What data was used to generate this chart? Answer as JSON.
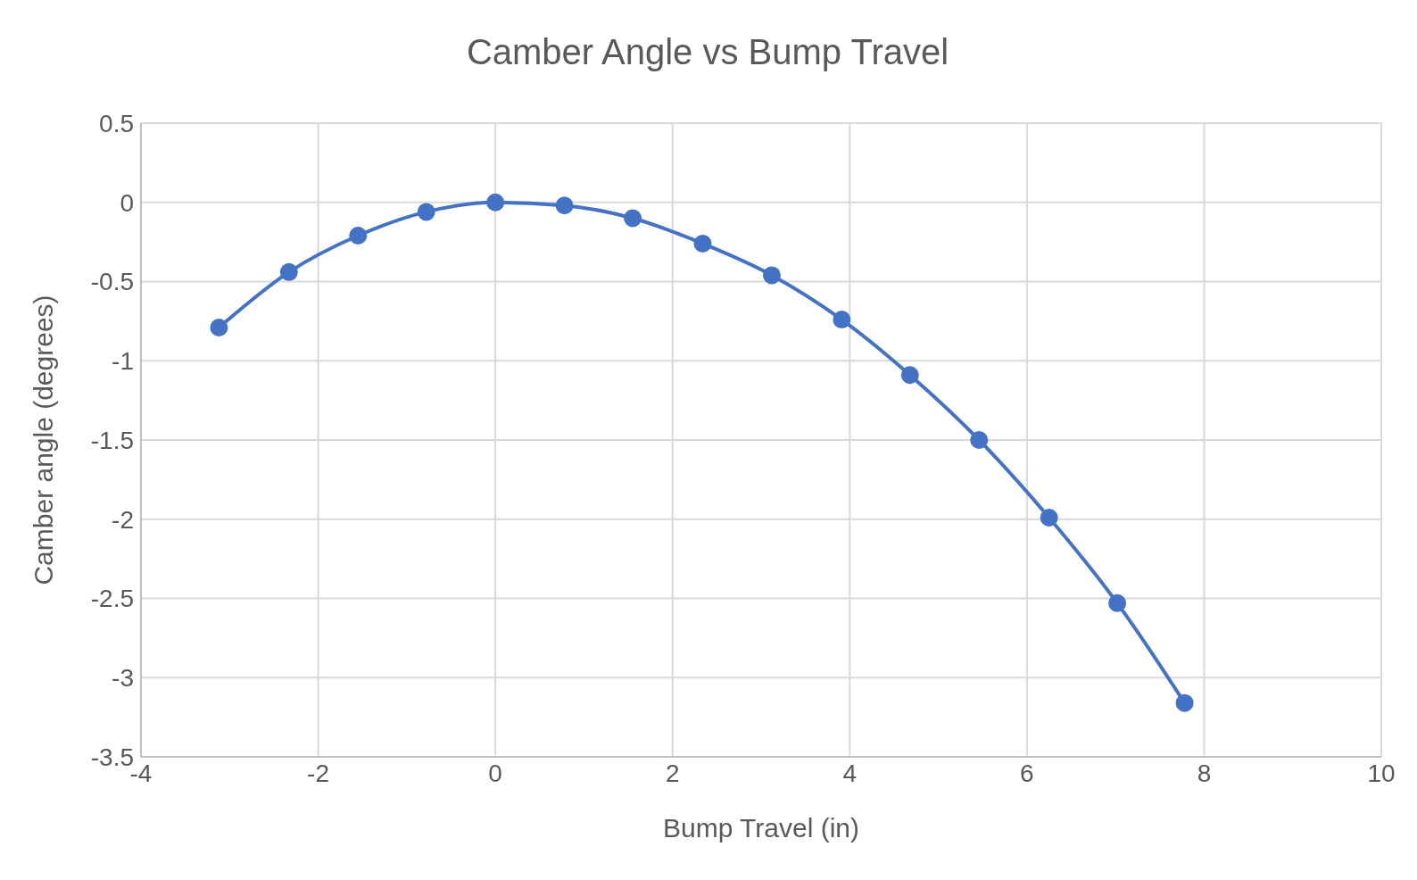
{
  "chart_data": {
    "type": "line",
    "title": "Camber Angle vs Bump Travel",
    "xlabel": "Bump Travel (in)",
    "ylabel": "Camber angle (degrees)",
    "x": [
      -3.12,
      -2.33,
      -1.55,
      -0.78,
      0,
      0.78,
      1.55,
      2.34,
      3.12,
      3.91,
      4.68,
      5.46,
      6.25,
      7.02,
      7.78
    ],
    "series": [
      {
        "color": "#4472c4",
        "values": [
          -0.79,
          -0.44,
          -0.21,
          -0.06,
          0,
          -0.02,
          -0.1,
          -0.26,
          -0.46,
          -0.74,
          -1.09,
          -1.5,
          -1.99,
          -2.53,
          -3.16
        ]
      }
    ],
    "xlim": [
      -4,
      10
    ],
    "xticks": [
      -4,
      -2,
      0,
      2,
      4,
      6,
      8,
      10
    ],
    "ylim": [
      -3.5,
      0.5
    ],
    "yticks": [
      -3.5,
      -3,
      -2.5,
      -2,
      -1.5,
      -1,
      -0.5,
      0,
      0.5
    ],
    "grid": true,
    "marker": "circle",
    "line_style": "solid",
    "legend": false
  }
}
